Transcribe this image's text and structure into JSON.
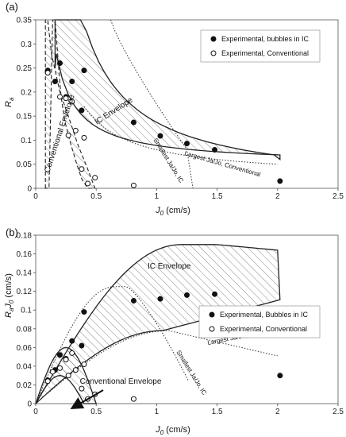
{
  "chart_data": [
    {
      "type": "scatter",
      "panel_label": "(a)",
      "xlabel": "J0 (cm/s)",
      "xlabel_parts": {
        "main": "J",
        "sub": "0",
        "rest": " (cm/s)"
      },
      "ylabel": "Ra",
      "ylabel_parts": {
        "main": "R",
        "sub": "a",
        "rest": ""
      },
      "xlim": [
        0,
        2.5
      ],
      "ylim": [
        0,
        0.35
      ],
      "xticks": [
        "0",
        "0.5",
        "1",
        "1.5",
        "2",
        "2.5"
      ],
      "yticks": [
        "0",
        "0.05",
        "0.1",
        "0.15",
        "0.2",
        "0.25",
        "0.3",
        "0.35"
      ],
      "legend_position": "top-right",
      "series": [
        {
          "name": "Experimental, bubbles in IC",
          "marker": "filled-circle",
          "x": [
            0.1,
            0.16,
            0.2,
            0.25,
            0.3,
            0.38,
            0.4,
            0.81,
            1.03,
            1.25,
            1.48,
            2.02
          ],
          "y": [
            0.245,
            0.222,
            0.26,
            0.19,
            0.222,
            0.162,
            0.245,
            0.137,
            0.109,
            0.093,
            0.08,
            0.015
          ]
        },
        {
          "name": "Experimental, Conventional",
          "marker": "open-circle",
          "x": [
            0.1,
            0.2,
            0.25,
            0.27,
            0.3,
            0.33,
            0.38,
            0.4,
            0.43,
            0.49,
            0.81
          ],
          "y": [
            0.24,
            0.19,
            0.187,
            0.11,
            0.18,
            0.12,
            0.04,
            0.105,
            0.01,
            0.022,
            0.006
          ]
        }
      ],
      "annotations": [
        "IC Envelope",
        "Conventional Envelope",
        "Largest Ja/Jo, Conventional",
        "Smallest Ja/Jo, IC"
      ]
    },
    {
      "type": "scatter",
      "panel_label": "(b)",
      "xlabel": "J0 (cm/s)",
      "xlabel_parts": {
        "main": "J",
        "sub": "0",
        "rest": " (cm/s)"
      },
      "ylabel": "RaJ0 (cm/s)",
      "ylabel_parts": {
        "main": "R",
        "sub": "a",
        "mid": "J",
        "sub2": "0",
        "rest": " (cm/s)"
      },
      "xlim": [
        0,
        2.5
      ],
      "ylim": [
        0,
        0.18
      ],
      "xticks": [
        "0",
        "0.5",
        "1",
        "1.5",
        "2",
        "2.5"
      ],
      "yticks": [
        "0",
        "0.02",
        "0.04",
        "0.06",
        "0.08",
        "0.1",
        "0.12",
        "0.14",
        "0.16",
        "0.18"
      ],
      "legend_position": "center-right",
      "series": [
        {
          "name": "Experimental, Bubbles in IC",
          "marker": "filled-circle",
          "x": [
            0.1,
            0.16,
            0.2,
            0.25,
            0.3,
            0.38,
            0.4,
            0.81,
            1.03,
            1.25,
            1.48,
            2.02
          ],
          "y": [
            0.025,
            0.036,
            0.052,
            0.048,
            0.067,
            0.062,
            0.098,
            0.11,
            0.112,
            0.116,
            0.117,
            0.03
          ]
        },
        {
          "name": "Experimental, Conventional",
          "marker": "open-circle",
          "x": [
            0.1,
            0.14,
            0.2,
            0.25,
            0.27,
            0.3,
            0.33,
            0.38,
            0.4,
            0.43,
            0.49,
            0.81
          ],
          "y": [
            0.024,
            0.034,
            0.038,
            0.047,
            0.03,
            0.054,
            0.036,
            0.016,
            0.042,
            0.005,
            0.01,
            0.005
          ]
        }
      ],
      "annotations": [
        "IC Envelope",
        "Conventional Envelope",
        "Largest Ja/Jo, Conventional",
        "Smallest Ja/Jo, IC"
      ]
    }
  ]
}
